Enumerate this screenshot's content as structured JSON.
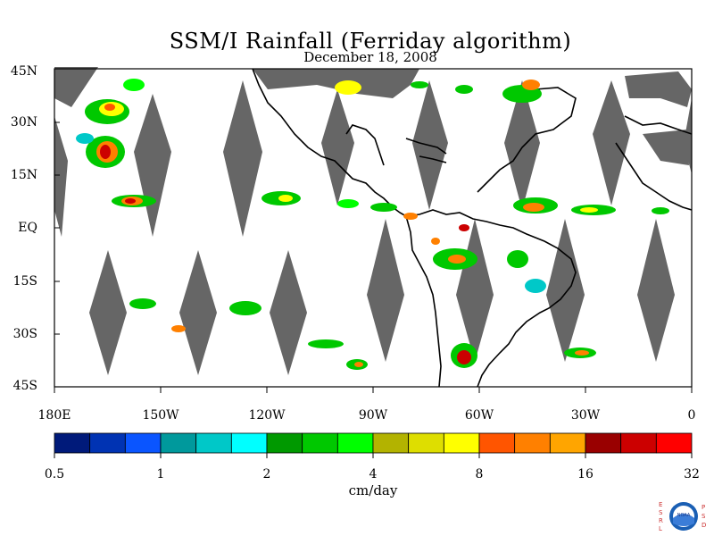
{
  "title": "SSM/I Rainfall (Ferriday algorithm)",
  "subtitle": "December 18, 2008",
  "lat_labels": [
    "45N",
    "30N",
    "15N",
    "EQ",
    "15S",
    "30S",
    "45S"
  ],
  "lon_labels": [
    "180E",
    "150W",
    "120W",
    "90W",
    "60W",
    "30W",
    "0"
  ],
  "colorbar": {
    "colors": [
      "#001a7a",
      "#0033b3",
      "#0a55ff",
      "#00999c",
      "#00c8c8",
      "#00ffff",
      "#009900",
      "#00c800",
      "#00ff00",
      "#b3b300",
      "#dede00",
      "#ffff00",
      "#ff5500",
      "#ff8000",
      "#ffa500",
      "#990000",
      "#cc0000",
      "#ff0000"
    ],
    "tick_labels": [
      "0.5",
      "1",
      "2",
      "4",
      "8",
      "16",
      "32"
    ],
    "units": "cm/day"
  },
  "logo": {
    "text": "NOAA",
    "left_letters": "ESRL",
    "right_letters": "PSD"
  },
  "chart_data": {
    "type": "heatmap",
    "title": "SSM/I Rainfall (Ferriday algorithm)",
    "subtitle": "December 18, 2008",
    "xlabel": "",
    "ylabel": "",
    "xlim": [
      "180E",
      "0"
    ],
    "ylim": [
      "45S",
      "45N"
    ],
    "x_ticks": [
      "180E",
      "150W",
      "120W",
      "90W",
      "60W",
      "30W",
      "0"
    ],
    "y_ticks": [
      "45N",
      "30N",
      "15N",
      "EQ",
      "15S",
      "30S",
      "45S"
    ],
    "color_scale_levels": [
      0.5,
      1,
      2,
      4,
      8,
      16,
      32
    ],
    "units": "cm/day",
    "missing_data_swath_gaps": "gray diamonds"
  }
}
